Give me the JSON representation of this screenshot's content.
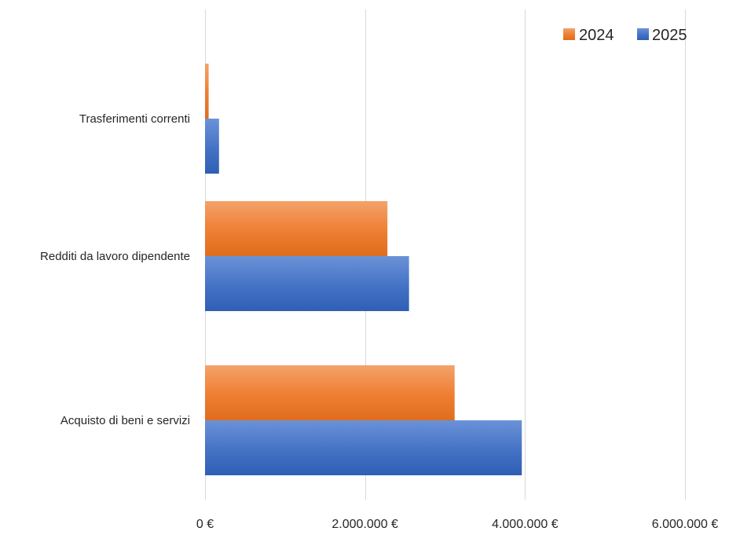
{
  "chart_data": {
    "type": "bar",
    "orientation": "horizontal",
    "title": "",
    "xlabel": "",
    "ylabel": "",
    "categories": [
      "Trasferimenti correnti",
      "Redditi da lavoro dipendente",
      "Acquisto di beni e servizi"
    ],
    "series": [
      {
        "name": "2024",
        "color": "#ED7D31",
        "values": [
          45000,
          2280000,
          3120000
        ]
      },
      {
        "name": "2025",
        "color": "#4472C4",
        "values": [
          175000,
          2550000,
          3960000
        ]
      }
    ],
    "xlim": [
      0,
      6000000
    ],
    "xticks": [
      0,
      2000000,
      4000000,
      6000000
    ],
    "xtick_labels": [
      "0 €",
      "2.000.000 €",
      "4.000.000 €",
      "6.000.000 €"
    ],
    "grid": true,
    "legend_position": "top-right"
  }
}
